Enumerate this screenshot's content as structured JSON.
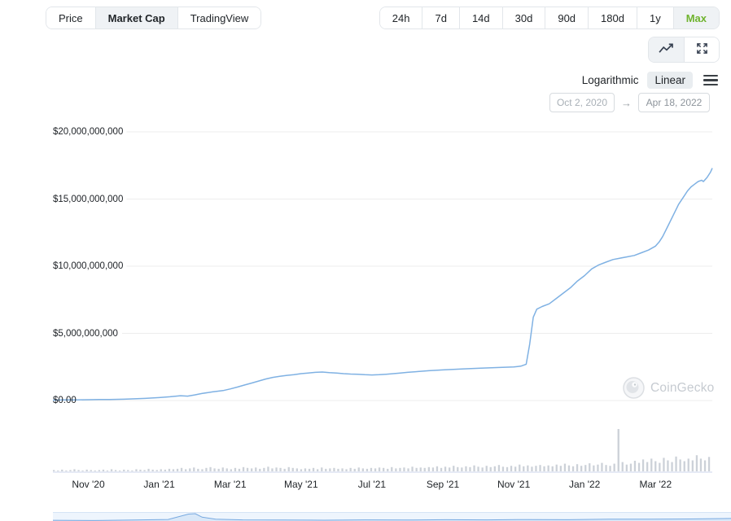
{
  "tabs": {
    "chart_type": [
      {
        "label": "Price",
        "selected": false
      },
      {
        "label": "Market Cap",
        "selected": true
      },
      {
        "label": "TradingView",
        "selected": false
      }
    ],
    "ranges": [
      {
        "label": "24h",
        "selected": false
      },
      {
        "label": "7d",
        "selected": false
      },
      {
        "label": "14d",
        "selected": false
      },
      {
        "label": "30d",
        "selected": false
      },
      {
        "label": "90d",
        "selected": false
      },
      {
        "label": "180d",
        "selected": false
      },
      {
        "label": "1y",
        "selected": false
      },
      {
        "label": "Max",
        "selected": true
      }
    ]
  },
  "controls": {
    "scale": [
      {
        "label": "Logarithmic",
        "selected": false
      },
      {
        "label": "Linear",
        "selected": true
      }
    ],
    "date_from": "Oct 2, 2020",
    "date_to": "Apr 18, 2022",
    "arrow": "→"
  },
  "watermark": {
    "label": "CoinGecko"
  },
  "colors": {
    "line": "#7fb1e3",
    "volume_bar": "#ccd1d8",
    "grid": "#ededed",
    "axis": "#ccd6eb",
    "accent_green": "#6fb32e",
    "selected_bg": "#eff2f5",
    "nav_line": "#77a9e0",
    "nav_fill": "#d9e8f8"
  },
  "chart_data": {
    "type": "line",
    "title": "",
    "xlabel": "",
    "ylabel": "",
    "ylim": [
      0,
      20000000000
    ],
    "x_domain": [
      0,
      18.6
    ],
    "x_unit": "months since Oct 2, 2020",
    "y_ticks": [
      {
        "value": 20000000000,
        "label": "$20,000,000,000"
      },
      {
        "value": 15000000000,
        "label": "$15,000,000,000"
      },
      {
        "value": 10000000000,
        "label": "$10,000,000,000"
      },
      {
        "value": 5000000000,
        "label": "$5,000,000,000"
      },
      {
        "value": 0,
        "label": "$0.00"
      }
    ],
    "x_ticks": [
      {
        "t": 1,
        "label": "Nov '20"
      },
      {
        "t": 3,
        "label": "Jan '21"
      },
      {
        "t": 5,
        "label": "Mar '21"
      },
      {
        "t": 7,
        "label": "May '21"
      },
      {
        "t": 9,
        "label": "Jul '21"
      },
      {
        "t": 11,
        "label": "Sep '21"
      },
      {
        "t": 13,
        "label": "Nov '21"
      },
      {
        "t": 15,
        "label": "Jan '22"
      },
      {
        "t": 17,
        "label": "Mar '22"
      }
    ],
    "series": [
      {
        "name": "market_cap_usd_billions",
        "points": [
          [
            0,
            0.03
          ],
          [
            0.3,
            0.04
          ],
          [
            0.6,
            0.05
          ],
          [
            1,
            0.06
          ],
          [
            1.3,
            0.07
          ],
          [
            1.6,
            0.08
          ],
          [
            2,
            0.1
          ],
          [
            2.3,
            0.13
          ],
          [
            2.6,
            0.16
          ],
          [
            3,
            0.22
          ],
          [
            3.3,
            0.28
          ],
          [
            3.6,
            0.36
          ],
          [
            3.8,
            0.33
          ],
          [
            4,
            0.42
          ],
          [
            4.2,
            0.52
          ],
          [
            4.5,
            0.64
          ],
          [
            4.8,
            0.74
          ],
          [
            5,
            0.86
          ],
          [
            5.2,
            1.0
          ],
          [
            5.4,
            1.15
          ],
          [
            5.6,
            1.3
          ],
          [
            5.8,
            1.45
          ],
          [
            6,
            1.6
          ],
          [
            6.2,
            1.72
          ],
          [
            6.4,
            1.8
          ],
          [
            6.6,
            1.87
          ],
          [
            6.8,
            1.93
          ],
          [
            7,
            2.0
          ],
          [
            7.2,
            2.05
          ],
          [
            7.4,
            2.1
          ],
          [
            7.6,
            2.12
          ],
          [
            7.8,
            2.08
          ],
          [
            8,
            2.05
          ],
          [
            8.2,
            2.0
          ],
          [
            8.4,
            1.97
          ],
          [
            8.6,
            1.95
          ],
          [
            8.8,
            1.92
          ],
          [
            9,
            1.9
          ],
          [
            9.2,
            1.92
          ],
          [
            9.4,
            1.96
          ],
          [
            9.6,
            2.0
          ],
          [
            9.8,
            2.05
          ],
          [
            10,
            2.1
          ],
          [
            10.3,
            2.16
          ],
          [
            10.6,
            2.22
          ],
          [
            11,
            2.28
          ],
          [
            11.3,
            2.32
          ],
          [
            11.6,
            2.36
          ],
          [
            12,
            2.4
          ],
          [
            12.3,
            2.43
          ],
          [
            12.6,
            2.46
          ],
          [
            13,
            2.5
          ],
          [
            13.2,
            2.56
          ],
          [
            13.35,
            2.7
          ],
          [
            13.45,
            4.2
          ],
          [
            13.55,
            6.2
          ],
          [
            13.65,
            6.8
          ],
          [
            13.8,
            7.0
          ],
          [
            14,
            7.2
          ],
          [
            14.2,
            7.6
          ],
          [
            14.4,
            8.0
          ],
          [
            14.6,
            8.4
          ],
          [
            14.8,
            8.9
          ],
          [
            15,
            9.3
          ],
          [
            15.2,
            9.8
          ],
          [
            15.4,
            10.1
          ],
          [
            15.6,
            10.3
          ],
          [
            15.8,
            10.5
          ],
          [
            16,
            10.6
          ],
          [
            16.2,
            10.7
          ],
          [
            16.4,
            10.8
          ],
          [
            16.6,
            11.0
          ],
          [
            16.8,
            11.2
          ],
          [
            17,
            11.5
          ],
          [
            17.1,
            11.8
          ],
          [
            17.2,
            12.2
          ],
          [
            17.35,
            13.0
          ],
          [
            17.5,
            13.8
          ],
          [
            17.65,
            14.6
          ],
          [
            17.8,
            15.2
          ],
          [
            17.9,
            15.6
          ],
          [
            18,
            15.9
          ],
          [
            18.1,
            16.1
          ],
          [
            18.2,
            16.3
          ],
          [
            18.3,
            16.4
          ],
          [
            18.35,
            16.3
          ],
          [
            18.45,
            16.6
          ],
          [
            18.55,
            17.0
          ],
          [
            18.6,
            17.3
          ]
        ]
      }
    ],
    "volume": {
      "unit": "relative_0_100",
      "bars": [
        3,
        2,
        4,
        2,
        3,
        5,
        3,
        2,
        4,
        3,
        2,
        3,
        4,
        2,
        5,
        3,
        2,
        4,
        3,
        2,
        5,
        4,
        3,
        6,
        4,
        3,
        5,
        4,
        6,
        5,
        6,
        8,
        5,
        7,
        9,
        6,
        5,
        8,
        10,
        7,
        6,
        9,
        7,
        5,
        8,
        6,
        10,
        8,
        7,
        9,
        6,
        8,
        11,
        7,
        9,
        8,
        6,
        10,
        8,
        7,
        5,
        7,
        6,
        8,
        5,
        9,
        6,
        7,
        8,
        6,
        7,
        5,
        8,
        6,
        9,
        7,
        6,
        8,
        7,
        9,
        8,
        6,
        10,
        7,
        8,
        9,
        7,
        11,
        8,
        9,
        8,
        10,
        9,
        12,
        8,
        11,
        9,
        13,
        10,
        9,
        12,
        10,
        14,
        11,
        9,
        13,
        10,
        12,
        15,
        11,
        10,
        13,
        11,
        16,
        12,
        14,
        11,
        13,
        15,
        12,
        14,
        12,
        16,
        13,
        18,
        14,
        12,
        17,
        13,
        15,
        19,
        14,
        16,
        20,
        15,
        13,
        18,
        100,
        22,
        16,
        18,
        25,
        20,
        28,
        22,
        30,
        24,
        20,
        32,
        26,
        22,
        35,
        28,
        24,
        30,
        26,
        38,
        30,
        26,
        34
      ]
    },
    "navigator": {
      "points": [
        [
          0,
          0.15
        ],
        [
          0.06,
          0.12
        ],
        [
          0.12,
          0.18
        ],
        [
          0.17,
          0.25
        ],
        [
          0.2,
          0.95
        ],
        [
          0.21,
          1.0
        ],
        [
          0.22,
          0.55
        ],
        [
          0.24,
          0.3
        ],
        [
          0.28,
          0.2
        ],
        [
          0.34,
          0.18
        ],
        [
          0.4,
          0.16
        ],
        [
          0.46,
          0.2
        ],
        [
          0.52,
          0.18
        ],
        [
          0.58,
          0.22
        ],
        [
          0.64,
          0.2
        ],
        [
          0.7,
          0.24
        ],
        [
          0.76,
          0.22
        ],
        [
          0.82,
          0.28
        ],
        [
          0.88,
          0.3
        ],
        [
          0.94,
          0.32
        ],
        [
          1,
          0.38
        ]
      ]
    }
  }
}
